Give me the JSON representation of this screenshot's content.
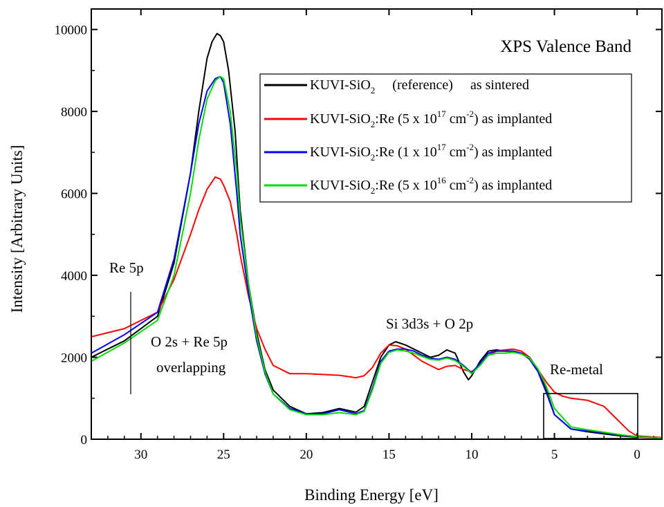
{
  "chart_data": {
    "type": "line",
    "title": "XPS Valence Band",
    "xlabel": "Binding Energy [eV]",
    "ylabel": "Intensity [Arbitrary Units]",
    "x_reversed": true,
    "xlim": [
      33,
      -1.5
    ],
    "ylim": [
      0,
      10500
    ],
    "xticks": [
      30,
      25,
      20,
      15,
      10,
      5,
      0
    ],
    "yticks": [
      0,
      2000,
      4000,
      6000,
      8000,
      10000
    ],
    "legend_position": "top-right",
    "series": [
      {
        "name": "KUVI-SiO2 (reference) as sintered",
        "legend": {
          "pre": "KUVI-SiO",
          "sub": "2",
          "mid": "     (reference)     as sintered",
          "sup": "",
          "post": ""
        },
        "color": "#000000",
        "x": [
          33,
          31,
          29,
          28,
          27,
          26.5,
          26,
          25.7,
          25.4,
          25.2,
          25,
          24.7,
          24.3,
          24,
          23.5,
          23,
          22.5,
          22,
          21,
          20,
          19,
          18,
          17,
          16.5,
          16,
          15.5,
          15,
          14.6,
          14,
          13.5,
          13,
          12.5,
          12,
          11.5,
          11,
          10.5,
          10.2,
          10,
          9.5,
          9,
          8.5,
          8,
          7.5,
          7,
          6.5,
          6,
          5.5,
          5,
          4,
          3,
          2,
          1,
          0,
          -1.5
        ],
        "y": [
          2000,
          2400,
          3000,
          4300,
          6500,
          8000,
          9300,
          9700,
          9900,
          9850,
          9700,
          9000,
          7500,
          5600,
          3800,
          2600,
          1700,
          1200,
          800,
          620,
          650,
          750,
          660,
          800,
          1400,
          2000,
          2300,
          2380,
          2300,
          2200,
          2100,
          2000,
          2050,
          2180,
          2100,
          1650,
          1450,
          1550,
          1900,
          2150,
          2180,
          2150,
          2150,
          2100,
          2000,
          1700,
          1200,
          600,
          250,
          180,
          130,
          80,
          50,
          30
        ]
      },
      {
        "name": "KUVI-SiO2:Re (5 x 10^17 cm^-2) as implanted",
        "legend": {
          "pre": "KUVI-SiO",
          "sub": "2",
          "mid": ":Re (5 x 10",
          "sup": "17",
          "post": " cm^-2) as implanted"
        },
        "color": "#ff0000",
        "x": [
          33,
          31,
          29,
          28,
          27,
          26.5,
          26,
          25.5,
          25.2,
          25,
          24.6,
          24.2,
          24,
          23.5,
          23,
          22.5,
          22,
          21,
          20,
          19,
          18,
          17,
          16.5,
          16,
          15.5,
          15,
          14.5,
          14,
          13.5,
          13,
          12.5,
          12,
          11.5,
          11,
          10.5,
          10,
          9.5,
          9,
          8.5,
          8,
          7.5,
          7,
          6.5,
          6,
          5.5,
          5,
          4.5,
          4,
          3,
          2,
          1.5,
          1,
          0.5,
          0,
          -1.5
        ],
        "y": [
          2500,
          2700,
          3100,
          3900,
          5000,
          5600,
          6100,
          6400,
          6350,
          6200,
          5800,
          5000,
          4500,
          3500,
          2700,
          2200,
          1800,
          1600,
          1600,
          1580,
          1560,
          1500,
          1550,
          1750,
          2100,
          2300,
          2280,
          2200,
          2050,
          1900,
          1800,
          1700,
          1780,
          1800,
          1700,
          1650,
          1800,
          2050,
          2150,
          2180,
          2200,
          2150,
          2000,
          1700,
          1400,
          1150,
          1050,
          1000,
          950,
          800,
          600,
          400,
          200,
          80,
          40
        ]
      },
      {
        "name": "KUVI-SiO2:Re (1 x 10^17 cm^-2) as implanted",
        "legend": {
          "pre": "KUVI-SiO",
          "sub": "2",
          "mid": ":Re (1 x 10",
          "sup": "17",
          "post": " cm^-2) as implanted"
        },
        "color": "#0000ff",
        "x": [
          33,
          31,
          29,
          28,
          27,
          26.5,
          26,
          25.5,
          25.2,
          25,
          24.6,
          24.2,
          24,
          23.5,
          23,
          22.5,
          22,
          21,
          20,
          19,
          18,
          17,
          16.5,
          16,
          15.5,
          15,
          14.5,
          14,
          13.5,
          13,
          12.5,
          12,
          11.5,
          11,
          10.5,
          10,
          9.5,
          9,
          8.5,
          8,
          7.5,
          7,
          6.5,
          6,
          5.5,
          5,
          4,
          3,
          2,
          1,
          0,
          -1.5
        ],
        "y": [
          2100,
          2550,
          3100,
          4400,
          6500,
          7700,
          8500,
          8800,
          8850,
          8700,
          7700,
          6000,
          5000,
          3600,
          2400,
          1600,
          1100,
          750,
          620,
          620,
          720,
          620,
          700,
          1250,
          1900,
          2150,
          2200,
          2200,
          2150,
          2050,
          1980,
          1950,
          2000,
          1950,
          1800,
          1620,
          1850,
          2100,
          2150,
          2150,
          2150,
          2100,
          1950,
          1650,
          1150,
          600,
          250,
          200,
          160,
          100,
          60,
          30
        ]
      },
      {
        "name": "KUVI-SiO2:Re (5 x 10^16 cm^-2) as implanted",
        "legend": {
          "pre": "KUVI-SiO",
          "sub": "2",
          "mid": ":Re (5 x 10",
          "sup": "16",
          "post": " cm^-2) as implanted"
        },
        "color": "#00dd00",
        "x": [
          33,
          31,
          29,
          28,
          27,
          26.5,
          26,
          25.5,
          25.2,
          25,
          24.6,
          24.2,
          24,
          23.5,
          23,
          22.5,
          22,
          21,
          20,
          19,
          18,
          17,
          16.5,
          16,
          15.5,
          15,
          14.5,
          14,
          13.5,
          13,
          12.5,
          12,
          11.5,
          11,
          10.5,
          10,
          9.5,
          9,
          8.5,
          8,
          7.5,
          7,
          6.5,
          6,
          5.5,
          5,
          4,
          3,
          2,
          1,
          0,
          -1.5
        ],
        "y": [
          1900,
          2350,
          2900,
          4000,
          6000,
          7300,
          8300,
          8750,
          8850,
          8800,
          8000,
          6500,
          5400,
          3800,
          2500,
          1650,
          1100,
          720,
          600,
          600,
          650,
          600,
          680,
          1200,
          1850,
          2120,
          2180,
          2150,
          2100,
          2020,
          1950,
          1930,
          1980,
          1920,
          1780,
          1600,
          1800,
          2050,
          2100,
          2100,
          2120,
          2080,
          1980,
          1720,
          1300,
          750,
          300,
          230,
          170,
          110,
          60,
          30
        ]
      }
    ],
    "annotations": [
      {
        "text": "Re 5p"
      },
      {
        "text": "O 2s + Re 5p"
      },
      {
        "text": "overlapping"
      },
      {
        "text": "Si 3d3s + O 2p"
      },
      {
        "text": "Re-metal"
      }
    ],
    "legend_unit": {
      "base": " cm",
      "sup": "-2"
    }
  }
}
